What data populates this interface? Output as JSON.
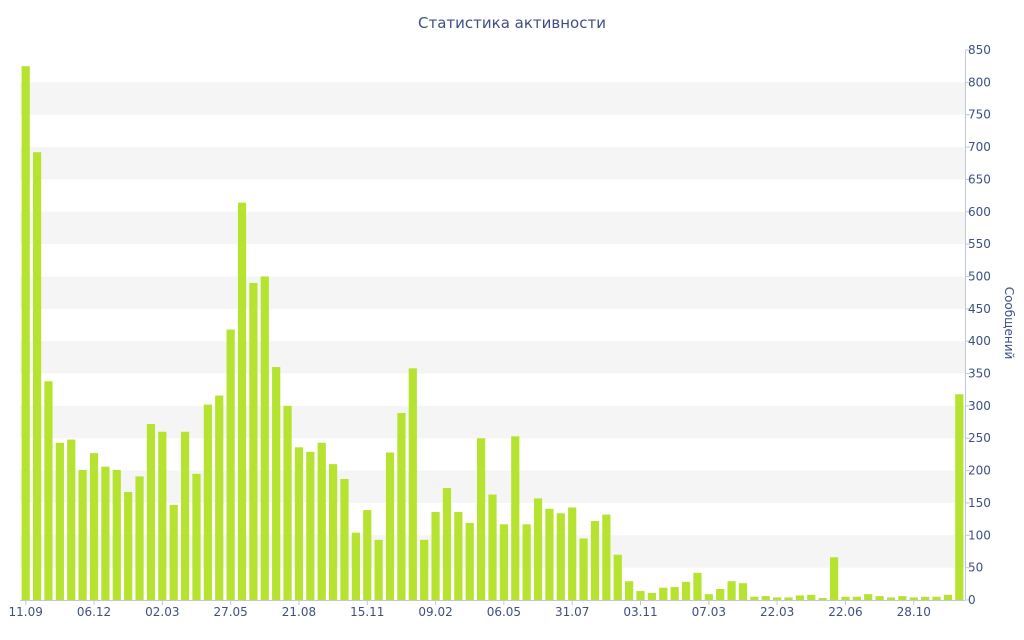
{
  "chart_data": {
    "type": "bar",
    "title": "Статистика активности",
    "xlabel": "",
    "ylabel": "Сообщений",
    "ylim": [
      0,
      850
    ],
    "yticks": [
      0,
      50,
      100,
      150,
      200,
      250,
      300,
      350,
      400,
      450,
      500,
      550,
      600,
      650,
      700,
      750,
      800,
      850
    ],
    "y_axis_position": "right",
    "grid": "alternating horizontal bands",
    "legend": "none",
    "bar_color": "#b5e32f",
    "band_color": "#f5f5f5",
    "text_color": "#3e4f84",
    "x_tick_labels": [
      "11.09",
      "06.12",
      "02.03",
      "27.05",
      "21.08",
      "15.11",
      "09.02",
      "06.05",
      "31.07",
      "03.11",
      "07.03",
      "22.03",
      "22.06",
      "28.10"
    ],
    "x_tick_indices": [
      0,
      6,
      12,
      18,
      24,
      30,
      36,
      42,
      48,
      54,
      60,
      66,
      72,
      78
    ],
    "values": [
      825,
      692,
      338,
      243,
      248,
      201,
      227,
      206,
      201,
      167,
      191,
      272,
      260,
      147,
      260,
      195,
      302,
      316,
      418,
      614,
      490,
      500,
      360,
      300,
      236,
      229,
      243,
      210,
      187,
      104,
      139,
      93,
      228,
      289,
      358,
      93,
      136,
      173,
      136,
      119,
      250,
      163,
      117,
      253,
      117,
      157,
      141,
      134,
      143,
      95,
      122,
      132,
      70,
      29,
      14,
      11,
      19,
      20,
      28,
      42,
      9,
      17,
      29,
      26,
      5,
      6,
      4,
      4,
      7,
      8,
      3,
      66,
      5,
      5,
      9,
      6,
      4,
      6,
      4,
      5,
      5,
      8,
      318
    ]
  }
}
